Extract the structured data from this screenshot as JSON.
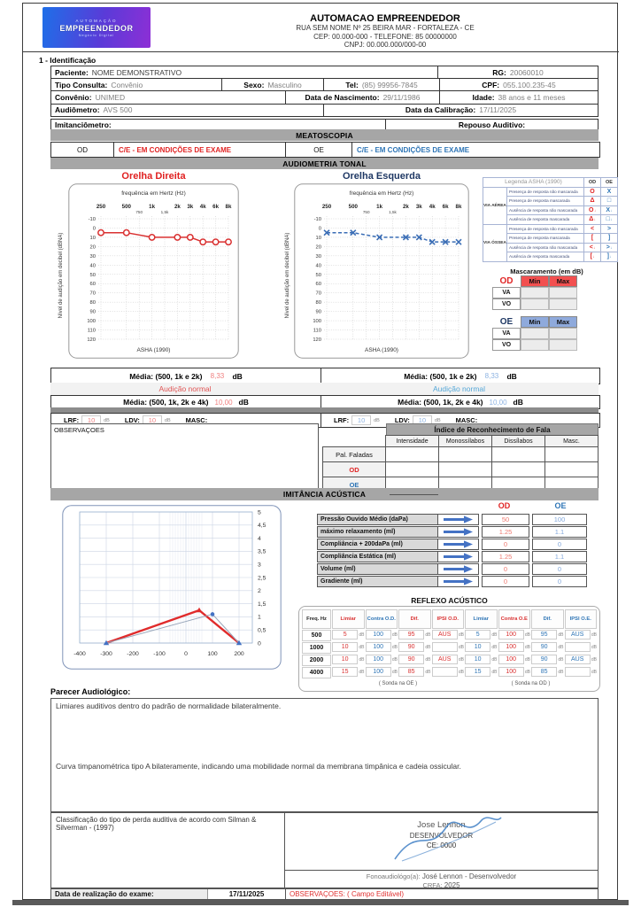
{
  "header": {
    "logo_line1": "AUTOMAÇÃO",
    "logo_line2": "EMPREENDEDOR",
    "logo_line3": "Negócio Digital",
    "title": "AUTOMACAO EMPREENDEDOR",
    "address_line": "RUA SEM NOME Nº 25  BEIRA MAR - FORTALEZA - CE",
    "cep_line": "CEP: 00.000-000 - TELEFONE: 85 00000000",
    "cnpj_line": "CNPJ: 00.000.000/000-00"
  },
  "identification": {
    "section_title": "1 - Identificação",
    "paciente_label": "Paciente:",
    "paciente_value": "NOME DEMONSTRATIVO",
    "rg_label": "RG:",
    "rg_value": "20060010",
    "tipo_label": "Tipo Consulta:",
    "tipo_value": "Convênio",
    "sexo_label": "Sexo:",
    "sexo_value": "Masculino",
    "tel_label": "Tel:",
    "tel_value": "(85) 99956-7845",
    "cpf_label": "CPF:",
    "cpf_value": "055.100.235-45",
    "convenio_label": "Convênio:",
    "convenio_value": "UNIMED",
    "nasc_label": "Data de Nascimento:",
    "nasc_value": "29/11/1986",
    "idade_label": "Idade:",
    "idade_value": "38 anos e 11 meses",
    "audiometro_label": "Audiômetro:",
    "audiometro_value": "AVS 500",
    "calib_label": "Data da Calibração:",
    "calib_value": "17/11/2025",
    "imitanciometro_label": "Imitanciômetro:",
    "repouso_label": "Repouso Auditivo:"
  },
  "meatoscopia": {
    "title": "MEATOSCOPIA",
    "od_label": "OD",
    "od_value": "C/E - EM CONDIÇÕES DE EXAME",
    "oe_label": "OE",
    "oe_value": "C/E - EM CONDIÇÕES DE EXAME"
  },
  "audiometria": {
    "title": "AUDIOMETRIA TONAL",
    "od_chart_title": "Orelha Direita",
    "oe_chart_title": "Orelha Esquerda",
    "y_axis_label": "Nível de audição em decibel (dBNA)",
    "legend": {
      "title": "Legenda ASHA (1990)",
      "col_od": "OD",
      "col_oe": "OE",
      "groups": [
        {
          "name": "VIA AÉREA",
          "rows": [
            {
              "desc": "Presença de resposta não mascarada",
              "od": "O",
              "oe": "X",
              "arrow": false
            },
            {
              "desc": "Presença de resposta mascarada",
              "od": "Δ",
              "oe": "□",
              "arrow": false
            },
            {
              "desc": "Ausência de resposta não mascarada",
              "od": "O",
              "oe": "X",
              "arrow": true
            },
            {
              "desc": "Ausência de resposta mascarada",
              "od": "Δ",
              "oe": "□",
              "arrow": true
            }
          ]
        },
        {
          "name": "VIA ÓSSEA",
          "rows": [
            {
              "desc": "Presença de resposta não mascarada",
              "od": "<",
              "oe": ">",
              "arrow": false
            },
            {
              "desc": "Presença de resposta mascarada",
              "od": "[",
              "oe": "]",
              "arrow": false
            },
            {
              "desc": "Ausência de resposta não mascarada",
              "od": "<",
              "oe": ">",
              "arrow": true
            },
            {
              "desc": "Ausência de resposta mascarada",
              "od": "[",
              "oe": "]",
              "arrow": true
            }
          ]
        }
      ]
    },
    "mascaramento": {
      "title": "Mascaramento (em dB)",
      "od_label": "OD",
      "oe_label": "OE",
      "min_label": "Min",
      "max_label": "Max",
      "row_labels": [
        "VA",
        "VO"
      ],
      "od_values": [
        [
          "",
          ""
        ],
        [
          "",
          ""
        ]
      ],
      "oe_values": [
        [
          "",
          ""
        ],
        [
          "",
          ""
        ]
      ]
    },
    "medias": {
      "od": {
        "media3_label": "Média: (500, 1k e 2k)",
        "media3_value": "8,33",
        "unit": "dB",
        "classificacao": "Audição normal",
        "media4_label": "Média: (500, 1k, 2k e 4k)",
        "media4_value": "10,00",
        "lrf_label": "LRF:",
        "lrf_value": "10",
        "ldv_label": "LDV:",
        "ldv_value": "10",
        "masc_label": "MASC:",
        "db_small": "dB"
      },
      "oe": {
        "media3_label": "Média: (500, 1k e 2k)",
        "media3_value": "8,33",
        "unit": "dB",
        "classificacao": "Audição normal",
        "media4_label": "Média: (500, 1k, 2k e 4k)",
        "media4_value": "10,00",
        "lrf_label": "LRF:",
        "lrf_value": "10",
        "ldv_label": "LDV:",
        "ldv_value": "10",
        "masc_label": "MASC:",
        "db_small": "dB"
      }
    }
  },
  "fala": {
    "observacoes_label": "OBSERVAÇOES",
    "irf_title": "Índice de Reconhecimento de Fala",
    "col_headers": [
      "Intensidade",
      "Monossílabos",
      "Dissílabos",
      "Masc."
    ],
    "row_labels": [
      "Pal. Faladas",
      "OD",
      "OE"
    ],
    "values": [
      [
        "",
        "",
        "",
        ""
      ],
      [
        "",
        "",
        "",
        ""
      ],
      [
        "",
        "",
        "",
        ""
      ]
    ]
  },
  "imitancia": {
    "title": "IMITÂNCIA ACÚSTICA",
    "od_label": "OD",
    "oe_label": "OE",
    "rows": [
      {
        "label": "Pressão Ouvido Médio (daPa)",
        "od": "50",
        "oe": "100"
      },
      {
        "label": "máximo relaxamento (ml)",
        "od": "1.25",
        "oe": "1.1"
      },
      {
        "label": "Compliância + 200daPa (ml)",
        "od": "0",
        "oe": "0"
      },
      {
        "label": "Compliância Estática (ml)",
        "od": "1.25",
        "oe": "1.1"
      },
      {
        "label": "Volume (ml)",
        "od": "0",
        "oe": "0"
      },
      {
        "label": "Gradiente (ml)",
        "od": "0",
        "oe": "0"
      }
    ]
  },
  "reflexo": {
    "title": "REFLEXO ACÚSTICO",
    "db": "dB",
    "headers": [
      "Freq. Hz",
      "Limiar",
      "Contra O.D.",
      "Dif.",
      "IPSI O.D.",
      "Limiar",
      "Contra O.E",
      "Dif.",
      "IPSI O.E."
    ],
    "header_colors": [
      "#222222",
      "#d93030",
      "#2e75b6",
      "#d93030",
      "#d93030",
      "#2e75b6",
      "#d93030",
      "#2e75b6",
      "#2e75b6"
    ],
    "rows": [
      [
        "500",
        "5",
        "100",
        "95",
        "AUS",
        "5",
        "100",
        "95",
        "AUS"
      ],
      [
        "1000",
        "10",
        "100",
        "90",
        "",
        "10",
        "100",
        "90",
        ""
      ],
      [
        "2000",
        "10",
        "100",
        "90",
        "AUS",
        "10",
        "100",
        "90",
        "AUS"
      ],
      [
        "4000",
        "15",
        "100",
        "85",
        "",
        "15",
        "100",
        "85",
        ""
      ]
    ],
    "foot_left": "( Sonda na OE )",
    "foot_right": "( Sonda na OD )"
  },
  "parecer": {
    "label": "Parecer Audiológico:",
    "text1": "Limiares auditivos dentro do padrão de normalidade bilateralmente.",
    "text2": "Curva timpanométrica tipo A bilateramente, indicando uma mobilidade normal da membrana timpânica e cadeia ossicular."
  },
  "footer": {
    "classificacao": "Classificação do tipo de perda auditiva de acordo com Silman & Silverman - (1997)",
    "signer_name": "Jose Lennon",
    "signer_role": "DESENVOLVEDOR",
    "signer_ce": "CE: 0000",
    "fono_label": "Fonoaudiológo(a):",
    "fono_value": "José Lennon - Desenvolvedor",
    "crfa_label": "CRFA:",
    "crfa_value": "2025",
    "date_label": "Data de realização do exame:",
    "date_value": "17/11/2025",
    "obs_label": "OBSERVAÇOES: ( Campo Editável)"
  },
  "colors": {
    "red": "#e02424",
    "red_value": "#f08080",
    "navy": "#1f3864",
    "blue": "#2e75b6",
    "blue_value": "#8db3e2",
    "arrow_blue": "#4472c4",
    "section_bar": "#a6a6a6"
  },
  "chart_data": [
    {
      "type": "line",
      "name": "audiograma-orelha-direita",
      "title": "Orelha Direita",
      "top_axis_label": "frequência em Hertz (Hz)",
      "ylabel": "Nível de audição em decibel (dBNA)",
      "footnote": "ASHA (1990)",
      "categories": [
        "250",
        "500",
        "1k",
        "2k",
        "3k",
        "4k",
        "6k",
        "8k"
      ],
      "octave_positions": [
        0,
        1,
        2,
        3,
        3.5,
        4,
        4.5,
        5
      ],
      "minor_ticks": [
        {
          "pos": 1.5,
          "label": "750"
        },
        {
          "pos": 2.5,
          "label": "1,5k"
        }
      ],
      "values": [
        5,
        5,
        10,
        10,
        10,
        15,
        15,
        15
      ],
      "ylim": [
        -10,
        120
      ],
      "ytick_step": 10,
      "color": "#d93030",
      "marker": "circle",
      "line_style": "solid",
      "grid": true
    },
    {
      "type": "line",
      "name": "audiograma-orelha-esquerda",
      "title": "Orelha Esquerda",
      "top_axis_label": "frequência em Hertz (Hz)",
      "ylabel": "Nível de audição em decibel (dBNA)",
      "footnote": "ASHA (1990)",
      "categories": [
        "250",
        "500",
        "1k",
        "2k",
        "3k",
        "4k",
        "6k",
        "8k"
      ],
      "octave_positions": [
        0,
        1,
        2,
        3,
        3.5,
        4,
        4.5,
        5
      ],
      "minor_ticks": [
        {
          "pos": 1.5,
          "label": "750"
        },
        {
          "pos": 2.5,
          "label": "1,5k"
        }
      ],
      "values": [
        5,
        5,
        10,
        10,
        10,
        15,
        15,
        15
      ],
      "ylim": [
        -10,
        120
      ],
      "ytick_step": 10,
      "color": "#3a6db5",
      "marker": "x",
      "line_style": "dashed",
      "grid": true
    },
    {
      "type": "line",
      "name": "timpanometria",
      "xticks": [
        -400,
        -300,
        -200,
        -100,
        0,
        100,
        200
      ],
      "xlim": [
        -400,
        250
      ],
      "ylim": [
        0,
        5
      ],
      "ytick_step": 0.5,
      "grid": true,
      "series": [
        {
          "name": "OD",
          "color": "#e02b2b",
          "stroke_width": 2.4,
          "points": [
            [
              -300,
              0
            ],
            [
              50,
              1.25
            ],
            [
              200,
              0
            ]
          ],
          "markers": [
            {
              "index": 1,
              "shape": "triangle",
              "color": "#e02b2b"
            }
          ]
        },
        {
          "name": "OE",
          "color": "#97a5b9",
          "stroke_width": 1,
          "points": [
            [
              -300,
              0
            ],
            [
              100,
              1.1
            ],
            [
              200,
              0
            ]
          ],
          "markers": [
            {
              "index": 0,
              "shape": "triangle",
              "color": "#4472c4"
            },
            {
              "index": 1,
              "shape": "circle",
              "color": "#4472c4"
            },
            {
              "index": 2,
              "shape": "triangle",
              "color": "#4472c4"
            }
          ]
        }
      ]
    }
  ]
}
